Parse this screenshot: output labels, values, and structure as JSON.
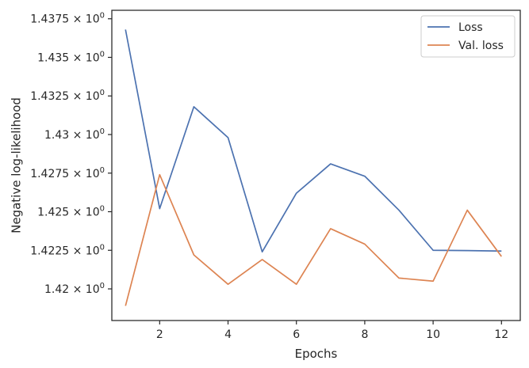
{
  "chart_data": {
    "type": "line",
    "title": "",
    "xlabel": "Epochs",
    "ylabel": "Negative log-likelihood",
    "xlim": [
      0.6,
      12.55
    ],
    "ylim": [
      1.41795,
      1.43805
    ],
    "xticks": [
      2,
      4,
      6,
      8,
      10,
      12
    ],
    "xtick_labels": [
      "2",
      "4",
      "6",
      "8",
      "10",
      "12"
    ],
    "yticks": [
      1.42,
      1.4225,
      1.425,
      1.4275,
      1.43,
      1.4325,
      1.435,
      1.4375
    ],
    "ytick_mantissas": [
      "1.42",
      "1.4225",
      "1.425",
      "1.4275",
      "1.43",
      "1.4325",
      "1.435",
      "1.4375"
    ],
    "ytick_base": "× 10",
    "ytick_exponent": "0",
    "grid": false,
    "legend_position": "top-right",
    "x": [
      1,
      2,
      3,
      4,
      5,
      6,
      7,
      8,
      9,
      10,
      11,
      12
    ],
    "series": [
      {
        "name": "Loss",
        "color": "#4c72b0",
        "values": [
          1.4368,
          1.4252,
          1.4318,
          1.4298,
          1.4224,
          1.4262,
          1.4281,
          1.4273,
          1.4251,
          1.4225,
          1.42248,
          1.42245
        ]
      },
      {
        "name": "Val. loss",
        "color": "#dd8452",
        "values": [
          1.4189,
          1.4274,
          1.4222,
          1.4203,
          1.4219,
          1.4203,
          1.4239,
          1.4229,
          1.4207,
          1.4205,
          1.4251,
          1.4221
        ]
      }
    ]
  }
}
